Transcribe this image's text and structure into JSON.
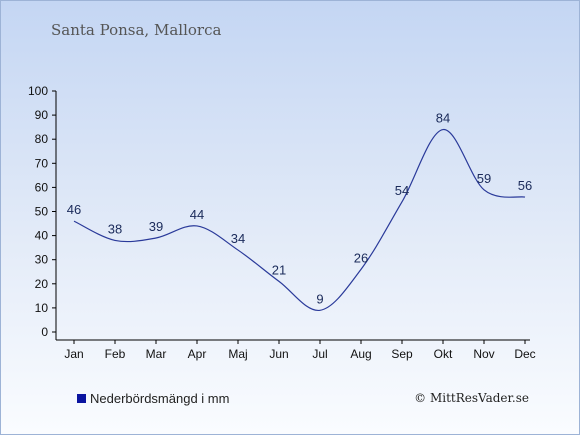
{
  "title": "Santa Ponsa, Mallorca",
  "legend": {
    "label": "Nederbördsmängd i mm",
    "color": "#0a14a0"
  },
  "credit": "© MittResVader.se",
  "colors": {
    "line": "#2a3a9a",
    "axis": "#000000",
    "label": "#1a2a5a"
  },
  "chart_data": {
    "type": "line",
    "title": "Santa Ponsa, Mallorca",
    "categories": [
      "Jan",
      "Feb",
      "Mar",
      "Apr",
      "Maj",
      "Jun",
      "Jul",
      "Aug",
      "Sep",
      "Okt",
      "Nov",
      "Dec"
    ],
    "series": [
      {
        "name": "Nederbördsmängd i mm",
        "values": [
          46,
          38,
          39,
          44,
          34,
          21,
          9,
          26,
          54,
          84,
          59,
          56
        ]
      }
    ],
    "ylim": [
      0,
      100
    ],
    "yticks": [
      0,
      10,
      20,
      30,
      40,
      50,
      60,
      70,
      80,
      90,
      100
    ],
    "grid": false,
    "legend_position": "bottom-left"
  }
}
